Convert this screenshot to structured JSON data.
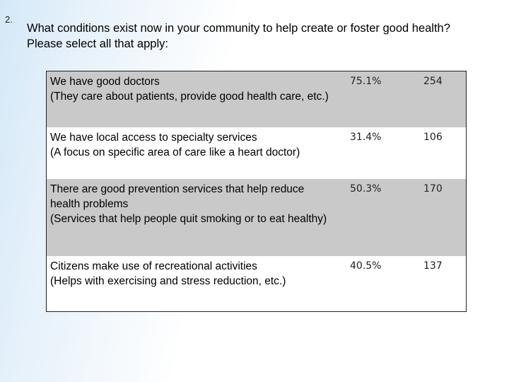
{
  "question": {
    "number": "2.",
    "text": "What conditions exist now in your community to help create or foster good health? Please select all that apply:"
  },
  "responses": [
    {
      "label": "We have good doctors\n(They care about patients, provide good health care, etc.)",
      "percent": "75.1%",
      "count": "254"
    },
    {
      "label": "We have local access to specialty services\n(A focus on specific area of care like a heart doctor)",
      "percent": "31.4%",
      "count": "106"
    },
    {
      "label": "There are good prevention services that help reduce health problems\n(Services that help people quit smoking or to eat healthy)",
      "percent": "50.3%",
      "count": "170"
    },
    {
      "label": "Citizens make use of recreational activities\n(Helps with exercising and stress reduction, etc.)",
      "percent": "40.5%",
      "count": "137"
    }
  ]
}
